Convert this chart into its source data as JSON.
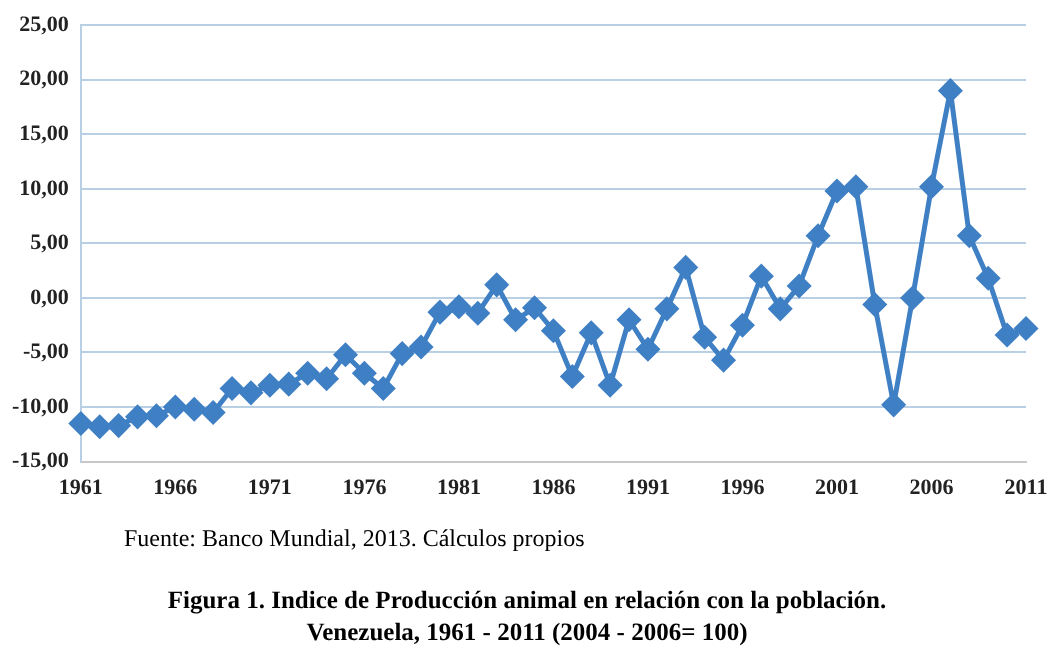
{
  "chart_data": {
    "type": "line",
    "title": "Figura 1. Indice de Producción animal en relación con la población.\nVenezuela, 1961 - 2011 (2004 - 2006= 100)",
    "annotations": [
      "Fuente: Banco Mundial, 2013. Cálculos propios"
    ],
    "categories": [
      "1961",
      null,
      null,
      null,
      null,
      "1966",
      null,
      null,
      null,
      null,
      "1971",
      null,
      null,
      null,
      null,
      "1976",
      null,
      null,
      null,
      null,
      "1981",
      null,
      null,
      null,
      null,
      "1986",
      null,
      null,
      null,
      null,
      "1991",
      null,
      null,
      null,
      null,
      "1996",
      null,
      null,
      null,
      null,
      "2001",
      null,
      null,
      null,
      null,
      "2006",
      null,
      null,
      null,
      null,
      "2011"
    ],
    "series": [
      {
        "color": "#3f7fc4",
        "values": [
          -11.5,
          -11.8,
          -11.7,
          -10.9,
          -10.8,
          -10.0,
          -10.2,
          -10.5,
          -8.3,
          -8.7,
          -8.0,
          -7.9,
          -6.9,
          -7.4,
          -5.2,
          -6.9,
          -8.3,
          -5.1,
          -4.5,
          -1.3,
          -0.8,
          -1.4,
          1.2,
          -2.0,
          -0.9,
          -3.0,
          -7.2,
          -3.2,
          -8.0,
          -2.0,
          -4.7,
          -1.0,
          2.8,
          -3.6,
          -5.7,
          -2.5,
          2.0,
          -1.0,
          1.1,
          5.7,
          9.8,
          10.2,
          -0.6,
          -9.8,
          0.0,
          10.2,
          19.0,
          5.7,
          1.8,
          -3.4,
          -2.8
        ]
      }
    ],
    "ylim": [
      -15,
      25
    ],
    "yticks": [
      {
        "value": -15,
        "label": "-15,00"
      },
      {
        "value": -10,
        "label": "-10,00"
      },
      {
        "value": -5,
        "label": "-5,00"
      },
      {
        "value": 0,
        "label": "0,00"
      },
      {
        "value": 5,
        "label": "5,00"
      },
      {
        "value": 10,
        "label": "10,00"
      },
      {
        "value": 15,
        "label": "15,00"
      },
      {
        "value": 20,
        "label": "20,00"
      },
      {
        "value": 25,
        "label": "25,00"
      }
    ],
    "grid": "y",
    "marker": "diamond",
    "line_style": "solid"
  }
}
